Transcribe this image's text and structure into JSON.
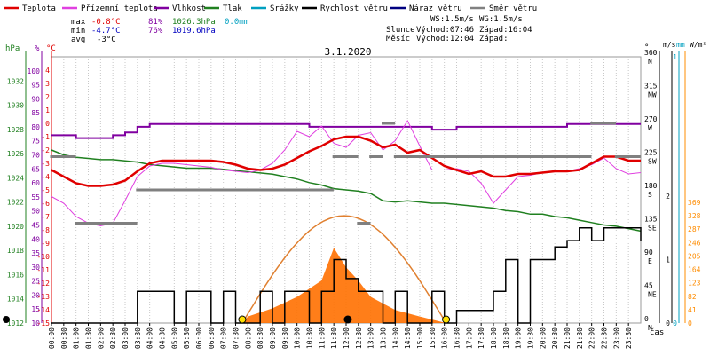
{
  "legend": [
    {
      "label": "Teplota",
      "color": "#e00000"
    },
    {
      "label": "Přízemní teplota",
      "color": "#e040e0"
    },
    {
      "label": "Vlhkost",
      "color": "#8000a0"
    },
    {
      "label": "Tlak",
      "color": "#208020"
    },
    {
      "label": "Srážky",
      "color": "#00a0c0"
    },
    {
      "label": "Rychlost větru",
      "color": "#000000"
    },
    {
      "label": "Náraz větru",
      "color": "#000080"
    },
    {
      "label": "Směr větru",
      "color": "#808080"
    }
  ],
  "stats": {
    "max_label": "max",
    "max_temp": "-0.8°C",
    "max_hum": "81%",
    "max_press": "1026.3hPa",
    "max_rain": "0.0mm",
    "min_label": "min",
    "min_temp": "-4.7°C",
    "min_hum": "76%",
    "min_press": "1019.6hPa",
    "avg_label": "avg",
    "avg_temp": "-3°C"
  },
  "wind_info": {
    "ws": "WS:1.5m/s",
    "wg": "WG:1.5m/s"
  },
  "sun_info": {
    "sun_label": "Slunce",
    "sunrise": "Východ:07:46",
    "sunset": "Západ:16:04"
  },
  "moon_info": {
    "moon_label": "Měsíc",
    "moonrise": "Východ:12:04",
    "moonset": "Západ:"
  },
  "chart_data": {
    "type": "line",
    "title": "3.1.2020",
    "x_label": "čas",
    "x_range": [
      0,
      24
    ],
    "x_ticks": [
      "00:00",
      "00:30",
      "01:00",
      "01:30",
      "02:00",
      "02:30",
      "03:00",
      "03:30",
      "04:00",
      "04:30",
      "05:00",
      "05:30",
      "06:00",
      "06:30",
      "07:00",
      "07:30",
      "08:00",
      "08:30",
      "09:00",
      "09:30",
      "10:00",
      "10:30",
      "11:00",
      "11:30",
      "12:00",
      "12:30",
      "13:00",
      "13:30",
      "14:00",
      "14:30",
      "15:00",
      "15:30",
      "16:00",
      "16:30",
      "17:00",
      "17:30",
      "18:00",
      "18:30",
      "19:00",
      "19:30",
      "20:00",
      "20:30",
      "21:00",
      "21:30",
      "22:00",
      "22:30",
      "23:00",
      "23:30"
    ],
    "axes": {
      "pressure": {
        "unit": "hPa",
        "range": [
          1012,
          1034
        ],
        "ticks": [
          1012,
          1014,
          1016,
          1018,
          1020,
          1022,
          1024,
          1026,
          1028,
          1030,
          1032
        ]
      },
      "humidity": {
        "unit": "%",
        "range": [
          10,
          105
        ],
        "ticks": [
          10,
          15,
          20,
          25,
          30,
          35,
          40,
          45,
          50,
          55,
          60,
          65,
          70,
          75,
          80,
          85,
          90,
          95,
          100
        ]
      },
      "temperature": {
        "unit": "°C",
        "range": [
          -15,
          5
        ],
        "ticks": [
          -15,
          -14,
          -13,
          -12,
          -11,
          -10,
          -9,
          -8,
          -7,
          -6,
          -5,
          -4,
          -3,
          -2,
          -1,
          0,
          1,
          2,
          3,
          4
        ]
      },
      "direction": {
        "unit": "°",
        "ticks": [
          "0 N",
          "45 NE",
          "90 E",
          "135 SE",
          "180 S",
          "225 SW",
          "270 W",
          "315 NW",
          "360 N"
        ]
      },
      "wind": {
        "unit": "m/s",
        "ticks": [
          "0",
          "1",
          "2"
        ]
      },
      "rain": {
        "unit": "mm",
        "ticks": [
          "0",
          "1"
        ]
      },
      "solar": {
        "unit": "W/m²",
        "ticks": [
          0,
          41,
          82,
          123,
          164,
          205,
          246,
          287,
          328,
          369
        ]
      }
    },
    "series": [
      {
        "name": "Teplota",
        "color": "#e00000",
        "unit": "°C",
        "x": [
          0,
          0.5,
          1,
          1.5,
          2,
          2.5,
          3,
          3.5,
          4,
          4.5,
          5,
          5.5,
          6,
          6.5,
          7,
          7.5,
          8,
          8.5,
          9,
          9.5,
          10,
          10.5,
          11,
          11.5,
          12,
          12.5,
          13,
          13.5,
          14,
          14.5,
          15,
          15.5,
          16,
          16.5,
          17,
          17.5,
          18,
          18.5,
          19,
          19.5,
          20,
          20.5,
          21,
          21.5,
          22,
          22.5,
          23,
          23.5,
          24
        ],
        "y": [
          -3.5,
          -4.0,
          -4.5,
          -4.7,
          -4.7,
          -4.6,
          -4.3,
          -3.6,
          -3.0,
          -2.8,
          -2.8,
          -2.8,
          -2.8,
          -2.8,
          -2.9,
          -3.1,
          -3.4,
          -3.5,
          -3.4,
          -3.1,
          -2.6,
          -2.1,
          -1.7,
          -1.2,
          -1.0,
          -1.0,
          -1.3,
          -1.8,
          -1.6,
          -2.2,
          -2.0,
          -2.6,
          -3.2,
          -3.5,
          -3.8,
          -3.6,
          -4.0,
          -4.0,
          -3.8,
          -3.8,
          -3.7,
          -3.6,
          -3.6,
          -3.5,
          -3.0,
          -2.5,
          -2.5,
          -2.8,
          -2.8
        ]
      },
      {
        "name": "Přízemní teplota",
        "color": "#e040e0",
        "unit": "°C",
        "x": [
          0,
          0.5,
          1,
          1.5,
          2,
          2.5,
          3,
          3.5,
          4,
          4.5,
          5,
          5.5,
          6,
          6.5,
          7,
          7.5,
          8,
          8.5,
          9,
          9.5,
          10,
          10.5,
          11,
          11.5,
          12,
          12.5,
          13,
          13.5,
          14,
          14.5,
          15,
          15.5,
          16,
          16.5,
          17,
          17.5,
          18,
          18.5,
          19,
          19.5,
          20,
          20.5,
          21,
          21.5,
          22,
          22.5,
          23,
          23.5,
          24
        ],
        "y": [
          -5.5,
          -6.0,
          -7.0,
          -7.5,
          -7.7,
          -7.5,
          -5.8,
          -4.0,
          -3.2,
          -3.0,
          -3.0,
          -3.1,
          -3.2,
          -3.3,
          -3.5,
          -3.6,
          -3.7,
          -3.5,
          -3.0,
          -2.0,
          -0.6,
          -1.0,
          -0.2,
          -1.5,
          -1.8,
          -0.9,
          -0.7,
          -2.0,
          -1.3,
          0.2,
          -1.7,
          -3.5,
          -3.5,
          -3.4,
          -3.6,
          -4.5,
          -6.0,
          -5.0,
          -4.0,
          -3.9,
          -3.7,
          -3.6,
          -3.6,
          -3.4,
          -3.1,
          -2.6,
          -3.4,
          -3.8,
          -3.7
        ]
      },
      {
        "name": "Vlhkost",
        "color": "#8000a0",
        "unit": "%",
        "x": [
          0,
          0.5,
          1,
          1.5,
          2,
          2.5,
          3,
          3.5,
          4,
          4.5,
          5,
          5.5,
          6,
          6.5,
          7,
          7.5,
          8,
          8.5,
          9,
          9.5,
          10,
          10.5,
          11,
          11.5,
          12,
          12.5,
          13,
          13.5,
          14,
          14.5,
          15,
          15.5,
          16,
          16.5,
          17,
          17.5,
          18,
          18.5,
          19,
          19.5,
          20,
          20.5,
          21,
          21.5,
          22,
          22.5,
          23,
          23.5,
          24
        ],
        "y": [
          77,
          77,
          76,
          76,
          76,
          77,
          78,
          80,
          81,
          81,
          81,
          81,
          81,
          81,
          81,
          81,
          81,
          81,
          81,
          81,
          81,
          80,
          80,
          80,
          80,
          80,
          80,
          80,
          80,
          80,
          80,
          79,
          79,
          80,
          80,
          80,
          80,
          80,
          80,
          80,
          80,
          80,
          81,
          81,
          81,
          81,
          81,
          81,
          81
        ]
      },
      {
        "name": "Tlak",
        "color": "#208020",
        "unit": "hPa",
        "x": [
          0,
          0.5,
          1,
          1.5,
          2,
          2.5,
          3,
          3.5,
          4,
          4.5,
          5,
          5.5,
          6,
          6.5,
          7,
          7.5,
          8,
          8.5,
          9,
          9.5,
          10,
          10.5,
          11,
          11.5,
          12,
          12.5,
          13,
          13.5,
          14,
          14.5,
          15,
          15.5,
          16,
          16.5,
          17,
          17.5,
          18,
          18.5,
          19,
          19.5,
          20,
          20.5,
          21,
          21.5,
          22,
          22.5,
          23,
          23.5,
          24
        ],
        "y": [
          1026.3,
          1025.9,
          1025.7,
          1025.6,
          1025.5,
          1025.5,
          1025.4,
          1025.3,
          1025.1,
          1025.0,
          1024.9,
          1024.8,
          1024.8,
          1024.8,
          1024.7,
          1024.6,
          1024.5,
          1024.4,
          1024.3,
          1024.1,
          1023.9,
          1023.6,
          1023.4,
          1023.1,
          1023.0,
          1022.9,
          1022.7,
          1022.1,
          1022.0,
          1022.1,
          1022.0,
          1021.9,
          1021.9,
          1021.8,
          1021.7,
          1021.6,
          1021.5,
          1021.3,
          1021.2,
          1021.0,
          1021.0,
          1020.8,
          1020.7,
          1020.5,
          1020.3,
          1020.1,
          1020.0,
          1019.8,
          1019.6
        ]
      },
      {
        "name": "Rychlost větru",
        "color": "#000000",
        "unit": "m/s",
        "x": [
          0,
          0.5,
          1,
          1.5,
          2,
          2.5,
          3,
          3.5,
          4,
          4.5,
          5,
          5.5,
          6,
          6.5,
          7,
          7.5,
          8,
          8.5,
          9,
          9.5,
          10,
          10.5,
          11,
          11.5,
          12,
          12.5,
          13,
          13.5,
          14,
          14.5,
          15,
          15.5,
          16,
          16.5,
          17,
          17.5,
          18,
          18.5,
          19,
          19.5,
          20,
          20.5,
          21,
          21.5,
          22,
          22.5,
          23,
          23.5,
          24
        ],
        "y": [
          0,
          0,
          0,
          0,
          0,
          0,
          0,
          0.5,
          0.5,
          0.5,
          0,
          0.5,
          0.5,
          0,
          0.5,
          0,
          0,
          0.5,
          0,
          0.5,
          0.5,
          0,
          0.5,
          1.0,
          0.7,
          0.5,
          0.5,
          0,
          0.5,
          0,
          0,
          0.5,
          0,
          0.2,
          0.2,
          0.2,
          0.5,
          1.0,
          0,
          1.0,
          1.0,
          1.2,
          1.3,
          1.5,
          1.3,
          1.5,
          1.5,
          1.5,
          1.3
        ]
      },
      {
        "name": "Směr větru",
        "color": "#808080",
        "unit": "°",
        "x": [
          0,
          0.5,
          1,
          1.5,
          2,
          2.5,
          3,
          3.5,
          4,
          4.5,
          5,
          5.5,
          6,
          6.5,
          7,
          7.5,
          8,
          8.5,
          9,
          9.5,
          10,
          10.5,
          11,
          11.5,
          12,
          12.5,
          13,
          13.5,
          14,
          14.5,
          15,
          15.5,
          16,
          16.5,
          17,
          17.5,
          18,
          18.5,
          19,
          19.5,
          20,
          20.5,
          21,
          21.5,
          22,
          22.5,
          23,
          23.5,
          24
        ],
        "y": [
          225,
          225,
          135,
          135,
          135,
          135,
          135,
          180,
          180,
          180,
          180,
          180,
          180,
          180,
          180,
          180,
          180,
          180,
          180,
          180,
          180,
          180,
          180,
          225,
          225,
          135,
          225,
          270,
          225,
          225,
          225,
          225,
          225,
          225,
          225,
          225,
          225,
          225,
          225,
          225,
          225,
          225,
          225,
          225,
          270,
          270,
          225,
          225,
          225
        ]
      },
      {
        "name": "Sluneční záření",
        "color": "#ff7000",
        "unit": "W/m²",
        "x": [
          7.77,
          8,
          9,
          10,
          11,
          11.5,
          12,
          12.5,
          13,
          13.5,
          14,
          15,
          16.07
        ],
        "y": [
          0,
          20,
          45,
          80,
          130,
          230,
          170,
          130,
          80,
          60,
          40,
          20,
          0
        ]
      }
    ],
    "markers": [
      {
        "name": "Východ slunce",
        "x": 7.77
      },
      {
        "name": "Západ slunce",
        "x": 16.07
      },
      {
        "name": "Východ měsíce",
        "x": 12.07
      }
    ],
    "grid": true,
    "legend_position": "top"
  }
}
